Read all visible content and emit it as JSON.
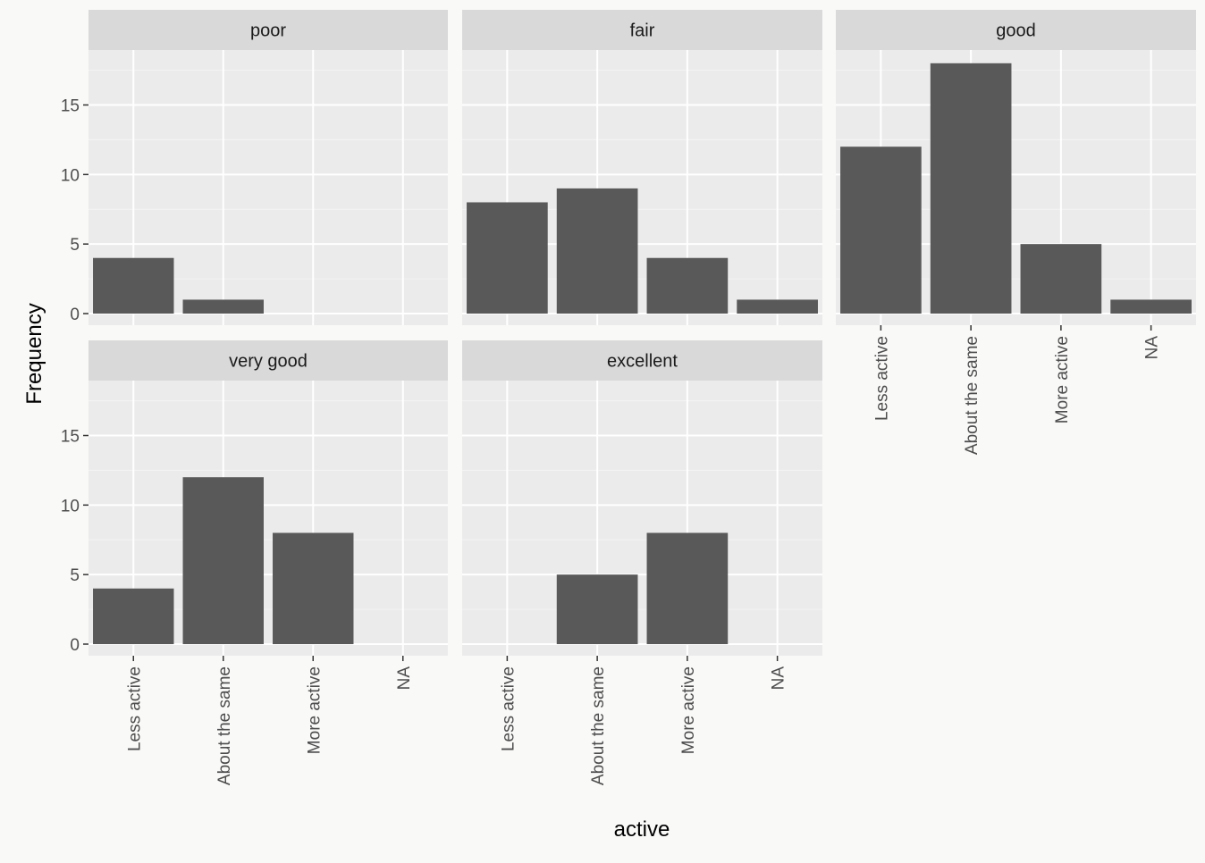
{
  "chart_data": {
    "type": "bar",
    "xlabel": "active",
    "ylabel": "Frequency",
    "categories": [
      "Less active",
      "About the same",
      "More active",
      "NA"
    ],
    "ylim": [
      0,
      19.6
    ],
    "yticks": [
      0,
      5,
      10,
      15
    ],
    "grid": true,
    "legend": "none",
    "bar_color": "#595959",
    "panel_bg": "#ebebeb",
    "strip_bg": "#d9d9d9",
    "panels": [
      {
        "name": "poor",
        "values": [
          4,
          1,
          0,
          0
        ]
      },
      {
        "name": "fair",
        "values": [
          8,
          9,
          4,
          1
        ]
      },
      {
        "name": "good",
        "values": [
          12,
          18,
          5,
          1
        ]
      },
      {
        "name": "very good",
        "values": [
          4,
          12,
          8,
          0
        ]
      },
      {
        "name": "excellent",
        "values": [
          0,
          5,
          8,
          0
        ]
      }
    ]
  }
}
